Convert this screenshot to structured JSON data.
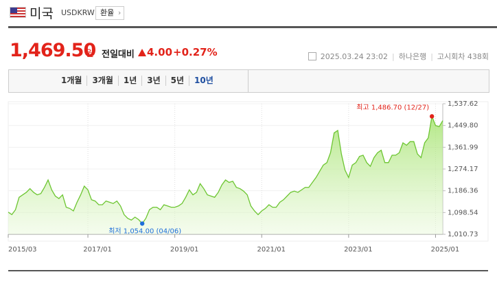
{
  "header": {
    "title": "미국",
    "code": "USDKRW",
    "button": "환율"
  },
  "quote": {
    "price": "1,469.50",
    "unit": "원",
    "compare_label": "전일대비",
    "change": "4.00",
    "change_percent": "+0.27%"
  },
  "info": {
    "datetime": "2025.03.24 23:02",
    "bank": "하나은행",
    "round": "고시회차 438회"
  },
  "tabs": {
    "items": [
      "1개월",
      "3개월",
      "1년",
      "3년",
      "5년",
      "10년"
    ],
    "active": "10년"
  },
  "chart_data": {
    "type": "line",
    "x": [
      "2015/03",
      "2015/04",
      "2015/05",
      "2015/06",
      "2015/07",
      "2015/08",
      "2015/09",
      "2015/10",
      "2015/11",
      "2015/12",
      "2016/01",
      "2016/02",
      "2016/03",
      "2016/04",
      "2016/05",
      "2016/06",
      "2016/07",
      "2016/08",
      "2016/09",
      "2016/10",
      "2016/11",
      "2016/12",
      "2017/01",
      "2017/02",
      "2017/03",
      "2017/04",
      "2017/05",
      "2017/06",
      "2017/07",
      "2017/08",
      "2017/09",
      "2017/10",
      "2017/11",
      "2017/12",
      "2018/01",
      "2018/02",
      "2018/03",
      "2018/04",
      "2018/05",
      "2018/06",
      "2018/07",
      "2018/08",
      "2018/09",
      "2018/10",
      "2018/11",
      "2018/12",
      "2019/01",
      "2019/02",
      "2019/03",
      "2019/04",
      "2019/05",
      "2019/06",
      "2019/07",
      "2019/08",
      "2019/09",
      "2019/10",
      "2019/11",
      "2019/12",
      "2020/01",
      "2020/02",
      "2020/03",
      "2020/04",
      "2020/05",
      "2020/06",
      "2020/07",
      "2020/08",
      "2020/09",
      "2020/10",
      "2020/11",
      "2020/12",
      "2021/01",
      "2021/02",
      "2021/03",
      "2021/04",
      "2021/05",
      "2021/06",
      "2021/07",
      "2021/08",
      "2021/09",
      "2021/10",
      "2021/11",
      "2021/12",
      "2022/01",
      "2022/02",
      "2022/03",
      "2022/04",
      "2022/05",
      "2022/06",
      "2022/07",
      "2022/08",
      "2022/09",
      "2022/10",
      "2022/11",
      "2022/12",
      "2023/01",
      "2023/02",
      "2023/03",
      "2023/04",
      "2023/05",
      "2023/06",
      "2023/07",
      "2023/08",
      "2023/09",
      "2023/10",
      "2023/11",
      "2023/12",
      "2024/01",
      "2024/02",
      "2024/03",
      "2024/04",
      "2024/05",
      "2024/06",
      "2024/07",
      "2024/08",
      "2024/09",
      "2024/10",
      "2024/11",
      "2024/12",
      "2025/01",
      "2025/02",
      "2025/03"
    ],
    "series": [
      {
        "name": "USDKRW",
        "color": "#6cc531",
        "values": [
          1100,
          1090,
          1110,
          1160,
          1170,
          1180,
          1195,
          1180,
          1170,
          1175,
          1200,
          1230,
          1190,
          1165,
          1155,
          1170,
          1120,
          1115,
          1105,
          1140,
          1170,
          1205,
          1190,
          1150,
          1145,
          1130,
          1130,
          1145,
          1140,
          1135,
          1145,
          1125,
          1090,
          1075,
          1068,
          1080,
          1070,
          1054,
          1075,
          1110,
          1120,
          1120,
          1110,
          1130,
          1125,
          1120,
          1120,
          1125,
          1135,
          1160,
          1190,
          1170,
          1180,
          1215,
          1195,
          1170,
          1165,
          1160,
          1180,
          1210,
          1230,
          1220,
          1225,
          1200,
          1195,
          1185,
          1170,
          1125,
          1105,
          1090,
          1105,
          1115,
          1130,
          1120,
          1120,
          1140,
          1150,
          1165,
          1180,
          1185,
          1180,
          1190,
          1200,
          1200,
          1220,
          1240,
          1265,
          1290,
          1300,
          1340,
          1420,
          1430,
          1335,
          1270,
          1240,
          1290,
          1300,
          1325,
          1330,
          1300,
          1285,
          1320,
          1340,
          1350,
          1300,
          1300,
          1330,
          1330,
          1340,
          1380,
          1370,
          1385,
          1385,
          1335,
          1320,
          1380,
          1400,
          1486.7,
          1450,
          1445,
          1469.5
        ]
      }
    ],
    "xticks": [
      "2015/03",
      "2017/01",
      "2019/01",
      "2021/01",
      "2023/01",
      "2025/01"
    ],
    "ylim": [
      1010.73,
      1537.62
    ],
    "yticks": [
      {
        "value": 1537.62,
        "label": "1,537.62"
      },
      {
        "value": 1449.8,
        "label": "1,449.80"
      },
      {
        "value": 1361.99,
        "label": "1,361.99"
      },
      {
        "value": 1274.17,
        "label": "1,274.17"
      },
      {
        "value": 1186.36,
        "label": "1,186.36"
      },
      {
        "value": 1098.54,
        "label": "1,098.54"
      },
      {
        "value": 1010.73,
        "label": "1,010.73"
      }
    ],
    "grid": true,
    "high_label": "최고 1,486.70 (12/27)",
    "high_color": "#e2231a",
    "low_label": "최저 1,054.00 (04/06)",
    "low_color": "#1e6fd9"
  }
}
